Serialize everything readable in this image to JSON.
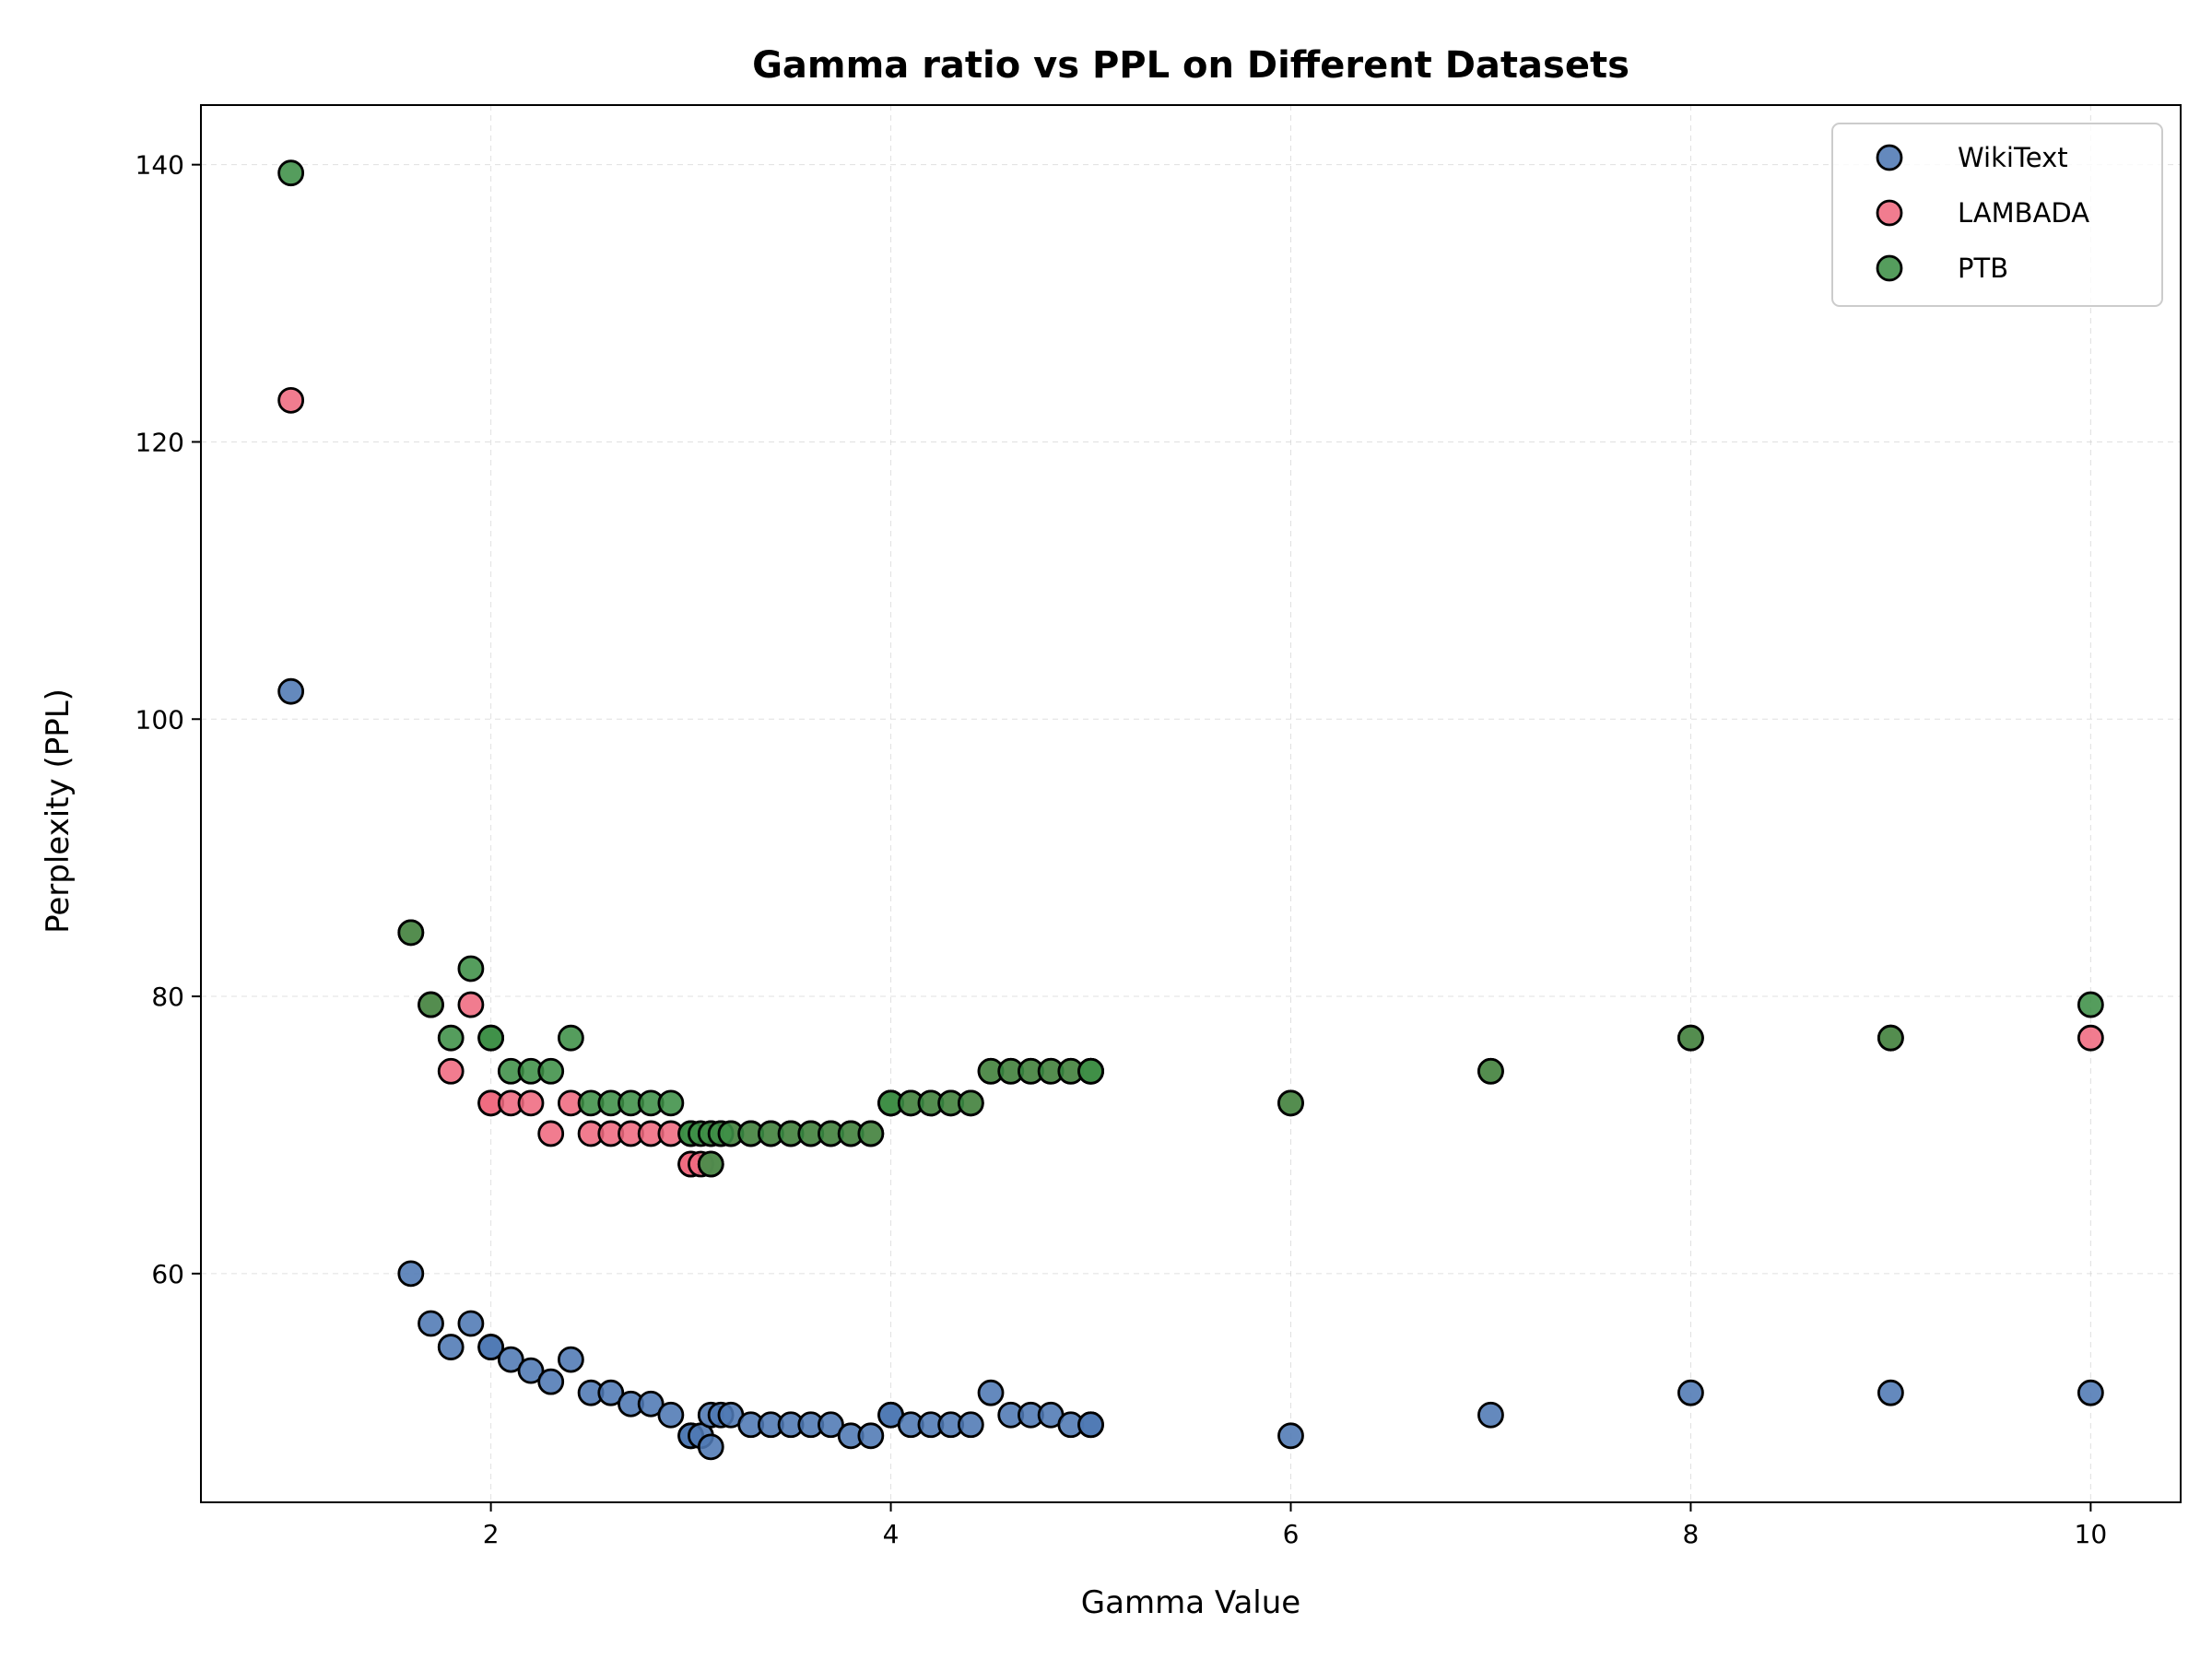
{
  "chart_data": {
    "type": "scatter",
    "title": "Gamma ratio vs PPL on Different Datasets",
    "xlabel": "Gamma Value",
    "ylabel": "Perplexity (PPL)",
    "xlim": [
      0.55,
      10.45
    ],
    "ylim": [
      43.5,
      144.3
    ],
    "xticks": [
      2,
      4,
      6,
      8,
      10
    ],
    "yticks": [
      60,
      80,
      100,
      120,
      140
    ],
    "grid": true,
    "legend_position": "top-right",
    "colors": {
      "WikiText": "#4e79b4",
      "LAMBADA": "#ef6a7f",
      "PTB": "#3d8f47"
    },
    "series": [
      {
        "name": "WikiText",
        "color": "#4e79b4",
        "x": [
          1.0,
          1.6,
          1.7,
          1.8,
          1.9,
          2.0,
          2.0,
          2.1,
          2.2,
          2.3,
          2.4,
          2.5,
          2.6,
          2.7,
          2.8,
          2.9,
          3.0,
          3.0,
          3.05,
          3.1,
          3.1,
          3.15,
          3.2,
          3.3,
          3.4,
          3.5,
          3.6,
          3.7,
          3.8,
          3.9,
          4.0,
          4.0,
          4.1,
          4.2,
          4.3,
          4.4,
          4.5,
          4.6,
          4.7,
          4.8,
          4.9,
          5.0,
          5.0,
          6.0,
          7.0,
          8.0,
          9.0,
          10.0
        ],
        "y": [
          102.0,
          60.0,
          56.4,
          54.7,
          56.4,
          54.7,
          54.7,
          53.8,
          53.0,
          52.2,
          53.8,
          51.4,
          51.4,
          50.6,
          50.6,
          49.8,
          48.3,
          48.3,
          48.3,
          47.5,
          49.8,
          49.8,
          49.8,
          49.1,
          49.1,
          49.1,
          49.1,
          49.1,
          48.3,
          48.3,
          49.8,
          49.8,
          49.1,
          49.1,
          49.1,
          49.1,
          51.4,
          49.8,
          49.8,
          49.8,
          49.1,
          49.1,
          49.1,
          48.3,
          49.8,
          51.4,
          51.4,
          51.4
        ]
      },
      {
        "name": "LAMBADA",
        "color": "#ef6a7f",
        "x": [
          1.0,
          1.6,
          1.7,
          1.8,
          1.9,
          2.0,
          2.0,
          2.1,
          2.2,
          2.3,
          2.4,
          2.5,
          2.6,
          2.7,
          2.8,
          2.9,
          3.0,
          3.0,
          3.05,
          3.1,
          3.1,
          3.15,
          3.2,
          3.3,
          3.4,
          3.5,
          3.6,
          3.7,
          3.8,
          3.9,
          4.0,
          4.0,
          4.1,
          4.2,
          4.3,
          4.4,
          4.5,
          4.6,
          4.7,
          4.8,
          4.9,
          5.0,
          5.0,
          6.0,
          7.0,
          8.0,
          9.0,
          10.0
        ],
        "y": [
          123.0,
          84.6,
          79.4,
          74.6,
          79.4,
          72.3,
          72.3,
          72.3,
          72.3,
          70.1,
          72.3,
          70.1,
          70.1,
          70.1,
          70.1,
          70.1,
          67.9,
          67.9,
          67.9,
          67.9,
          70.1,
          70.1,
          70.1,
          70.1,
          70.1,
          70.1,
          70.1,
          70.1,
          70.1,
          70.1,
          72.3,
          72.3,
          72.3,
          72.3,
          72.3,
          72.3,
          74.6,
          74.6,
          74.6,
          74.6,
          74.6,
          74.6,
          74.6,
          72.3,
          74.6,
          77.0,
          77.0,
          77.0
        ]
      },
      {
        "name": "PTB",
        "color": "#3d8f47",
        "x": [
          1.0,
          1.6,
          1.7,
          1.8,
          1.9,
          2.0,
          2.0,
          2.1,
          2.2,
          2.3,
          2.4,
          2.5,
          2.6,
          2.7,
          2.8,
          2.9,
          3.0,
          3.0,
          3.05,
          3.1,
          3.1,
          3.15,
          3.2,
          3.3,
          3.4,
          3.5,
          3.6,
          3.7,
          3.8,
          3.9,
          4.0,
          4.0,
          4.1,
          4.2,
          4.3,
          4.4,
          4.5,
          4.6,
          4.7,
          4.8,
          4.9,
          5.0,
          5.0,
          6.0,
          7.0,
          8.0,
          9.0,
          10.0
        ],
        "y": [
          139.4,
          84.6,
          79.4,
          77.0,
          82.0,
          77.0,
          77.0,
          74.6,
          74.6,
          74.6,
          77.0,
          72.3,
          72.3,
          72.3,
          72.3,
          72.3,
          70.1,
          70.1,
          70.1,
          67.9,
          70.1,
          70.1,
          70.1,
          70.1,
          70.1,
          70.1,
          70.1,
          70.1,
          70.1,
          70.1,
          72.3,
          72.3,
          72.3,
          72.3,
          72.3,
          72.3,
          74.6,
          74.6,
          74.6,
          74.6,
          74.6,
          74.6,
          74.6,
          72.3,
          74.6,
          77.0,
          77.0,
          79.4
        ]
      }
    ]
  }
}
